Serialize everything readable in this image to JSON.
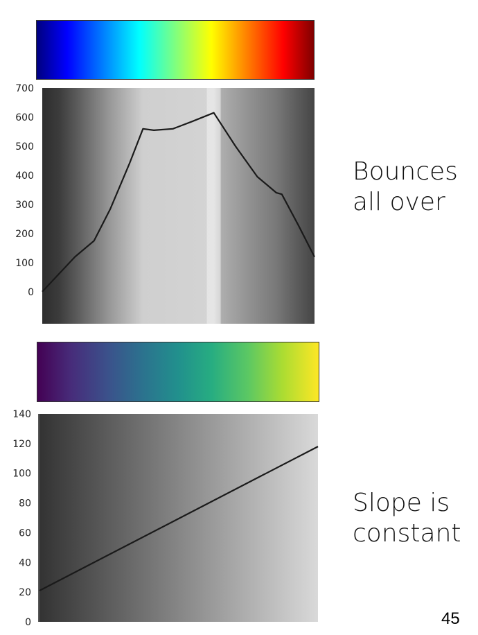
{
  "slide": {
    "caption_top": [
      "Bounces",
      "all over"
    ],
    "caption_bottom": [
      "Slope is",
      "constant"
    ],
    "page_number": "45"
  },
  "colorbars": [
    {
      "name": "jet",
      "colors": [
        "#00007f",
        "#0000ff",
        "#007fff",
        "#00ffff",
        "#7fff7f",
        "#ffff00",
        "#ff7f00",
        "#ff0000",
        "#7f0000"
      ]
    },
    {
      "name": "viridis",
      "colors": [
        "#440154",
        "#472c7a",
        "#3b518b",
        "#2c718e",
        "#21908d",
        "#27ad81",
        "#5cc863",
        "#aadc32",
        "#fde725"
      ]
    }
  ],
  "chart_data": [
    {
      "type": "line",
      "title": "",
      "xlabel": "",
      "ylabel": "",
      "ylim": [
        -110,
        700
      ],
      "xlim": [
        0,
        1
      ],
      "yticks": [
        "0",
        "100",
        "200",
        "300",
        "400",
        "500",
        "600",
        "700"
      ],
      "ytick_values": [
        0,
        100,
        200,
        300,
        400,
        500,
        600,
        700
      ],
      "grid": false,
      "series": [
        {
          "values": [
            [
              0.0,
              0
            ],
            [
              0.12,
              120
            ],
            [
              0.19,
              175
            ],
            [
              0.25,
              285
            ],
            [
              0.32,
              440
            ],
            [
              0.37,
              560
            ],
            [
              0.41,
              555
            ],
            [
              0.48,
              560
            ],
            [
              0.55,
              585
            ],
            [
              0.63,
              615
            ],
            [
              0.71,
              500
            ],
            [
              0.79,
              395
            ],
            [
              0.86,
              340
            ],
            [
              0.88,
              335
            ],
            [
              0.94,
              230
            ],
            [
              1.0,
              120
            ]
          ]
        }
      ],
      "background_gray": [
        [
          0.0,
          0.18
        ],
        [
          0.06,
          0.23
        ],
        [
          0.13,
          0.36
        ],
        [
          0.25,
          0.6
        ],
        [
          0.37,
          0.81
        ],
        [
          0.63,
          0.83
        ],
        [
          0.66,
          0.68
        ],
        [
          0.75,
          0.58
        ],
        [
          0.86,
          0.47
        ],
        [
          0.93,
          0.37
        ],
        [
          1.0,
          0.27
        ]
      ],
      "background_bright_band": [
        0.63,
        0.96
      ]
    },
    {
      "type": "line",
      "title": "",
      "xlabel": "",
      "ylabel": "",
      "ylim": [
        0,
        140
      ],
      "xlim": [
        0,
        1
      ],
      "yticks": [
        "0",
        "20",
        "40",
        "60",
        "80",
        "100",
        "120",
        "140"
      ],
      "ytick_values": [
        0,
        20,
        40,
        60,
        80,
        100,
        120,
        140
      ],
      "grid": false,
      "series": [
        {
          "values": [
            [
              0.0,
              21
            ],
            [
              1.0,
              118
            ]
          ]
        }
      ],
      "background_gray": [
        [
          0.0,
          0.2
        ],
        [
          1.0,
          0.85
        ]
      ]
    }
  ]
}
